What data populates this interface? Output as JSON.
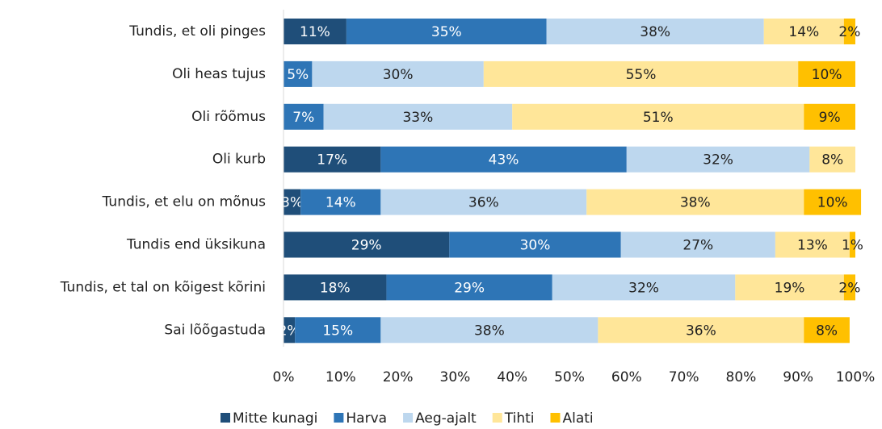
{
  "chart_data": {
    "type": "stacked-bar-horizontal",
    "categories": [
      "Tundis, et oli pinges",
      "Oli heas tujus",
      "Oli rõõmus",
      "Oli kurb",
      "Tundis, et elu on mõnus",
      "Tundis end üksikuna",
      "Tundis, et tal on kõigest kõrini",
      "Sai lõõgastuda"
    ],
    "series": [
      {
        "name": "Mitte kunagi",
        "color": "#1f4e79",
        "values": [
          11,
          0,
          0,
          17,
          3,
          29,
          18,
          2
        ],
        "value_labels": [
          "11%",
          null,
          null,
          "17%",
          "3%",
          "29%",
          "18%",
          "2%"
        ]
      },
      {
        "name": "Harva",
        "color": "#2e75b6",
        "values": [
          35,
          5,
          7,
          43,
          14,
          30,
          29,
          15
        ],
        "value_labels": [
          "35%",
          "5%",
          "7%",
          "43%",
          "14%",
          "30%",
          "29%",
          "15%"
        ]
      },
      {
        "name": "Aeg-ajalt",
        "color": "#bdd7ee",
        "values": [
          38,
          30,
          33,
          32,
          36,
          27,
          32,
          38
        ],
        "value_labels": [
          "38%",
          "30%",
          "33%",
          "32%",
          "36%",
          "27%",
          "32%",
          "38%"
        ]
      },
      {
        "name": "Tihti",
        "color": "#ffe699",
        "values": [
          14,
          55,
          51,
          8,
          38,
          13,
          19,
          36
        ],
        "value_labels": [
          "14%",
          "55%",
          "51%",
          "8%",
          "38%",
          "13%",
          "19%",
          "36%"
        ]
      },
      {
        "name": "Alati",
        "color": "#ffc000",
        "values": [
          2,
          10,
          9,
          0,
          10,
          1,
          2,
          8
        ],
        "value_labels": [
          "2%",
          "10%",
          "9%",
          null,
          "10%",
          "1%",
          "2%",
          "8%"
        ]
      }
    ],
    "xlim": [
      0,
      100
    ],
    "xticks": [
      {
        "value": 0,
        "label": "0%"
      },
      {
        "value": 10,
        "label": "10%"
      },
      {
        "value": 20,
        "label": "20%"
      },
      {
        "value": 30,
        "label": "30%"
      },
      {
        "value": 40,
        "label": "40%"
      },
      {
        "value": 50,
        "label": "50%"
      },
      {
        "value": 60,
        "label": "60%"
      },
      {
        "value": 70,
        "label": "70%"
      },
      {
        "value": 80,
        "label": "80%"
      },
      {
        "value": 90,
        "label": "90%"
      },
      {
        "value": 100,
        "label": "100%"
      }
    ],
    "legend": "bottom"
  }
}
